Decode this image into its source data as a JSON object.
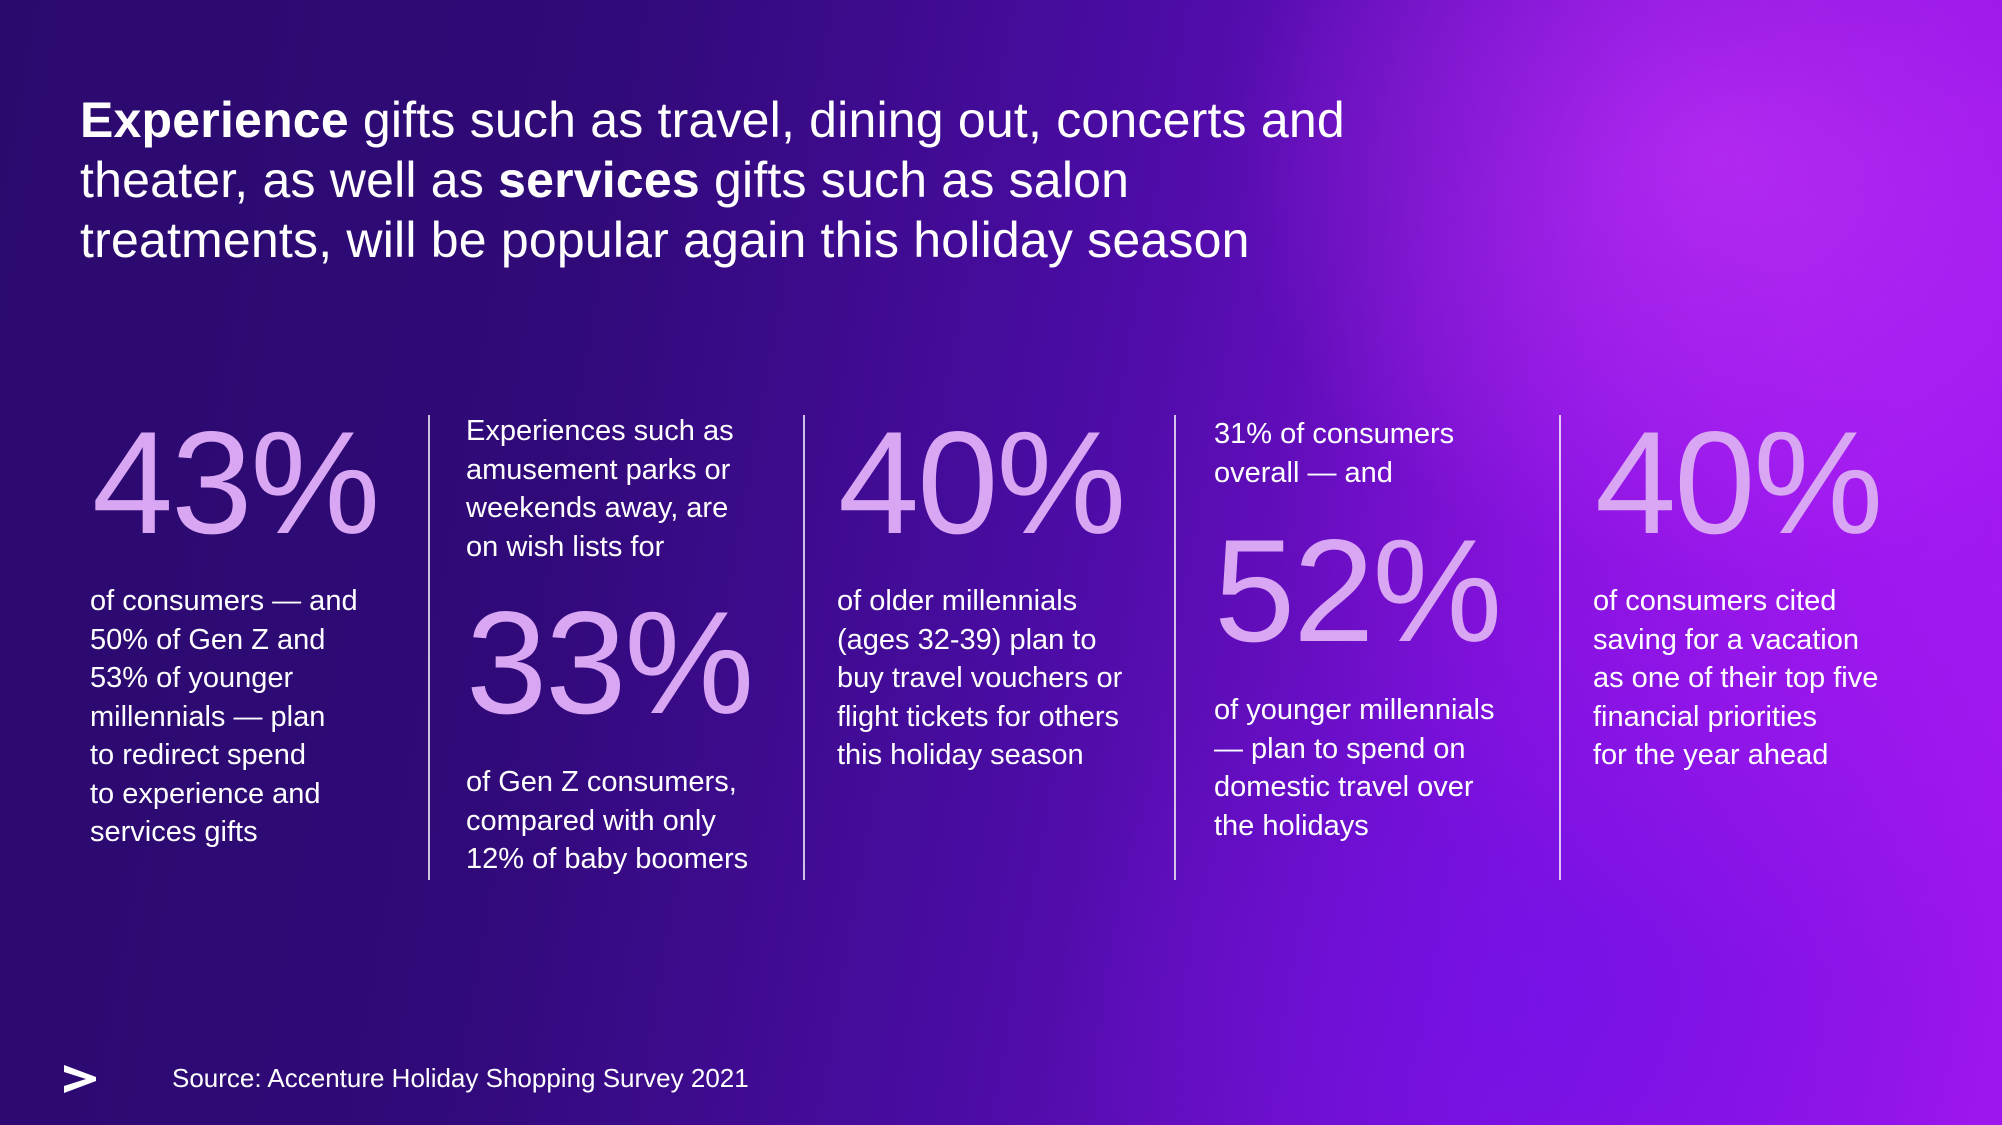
{
  "headline": {
    "part1_bold": "Experience",
    "part2": " gifts such as travel, dining out, concerts and theater, as well as ",
    "part3_bold": "services",
    "part4": " gifts such as salon treatments, will be popular again this holiday season"
  },
  "stats": [
    {
      "big": "43%",
      "lines": [
        "of consumers — and",
        "50% of Gen Z and",
        "53% of younger",
        "millennials — plan",
        "to redirect spend",
        "to experience and",
        "services gifts"
      ]
    },
    {
      "pre_lines": [
        "Experiences such as",
        "amusement parks or",
        "weekends away, are",
        "on wish lists for"
      ],
      "big": "33%",
      "lines": [
        "of Gen Z consumers,",
        "compared with only",
        "12% of baby boomers"
      ]
    },
    {
      "big": "40%",
      "lines": [
        "of older millennials",
        "(ages 32-39) plan to",
        "buy travel vouchers or",
        "flight tickets for others",
        "this holiday season"
      ]
    },
    {
      "pre_lines": [
        "31% of consumers",
        "overall — and"
      ],
      "big": "52%",
      "lines": [
        "of younger millennials",
        "— plan to spend on",
        "domestic travel over",
        "the holidays"
      ]
    },
    {
      "big": "40%",
      "lines": [
        "of consumers cited",
        "saving for a vacation",
        "as one of their top five",
        "financial priorities",
        "for the year ahead"
      ]
    }
  ],
  "footer": {
    "source": "Source: Accenture Holiday Shopping Survey 2021",
    "logo_icon": "accenture-chevron-icon"
  },
  "colors": {
    "accent_number": "#d9a6f3",
    "background_dark": "#2b0a6e",
    "background_bright": "#a016ee"
  }
}
